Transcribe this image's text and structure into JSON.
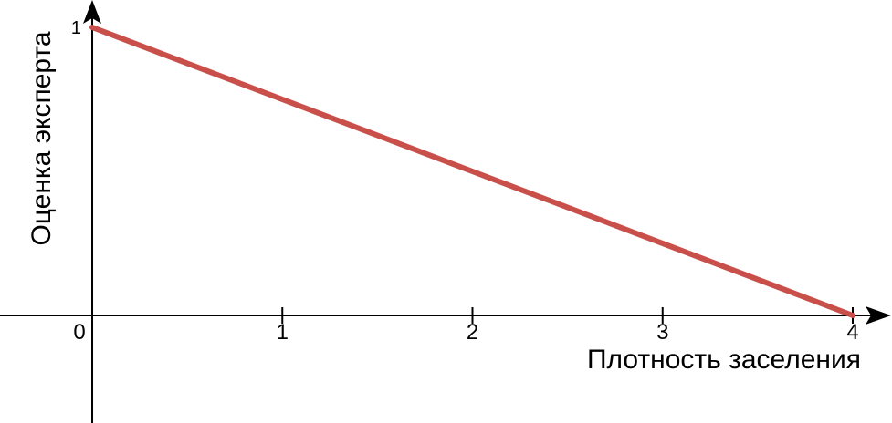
{
  "chart_data": {
    "type": "line",
    "xlabel": "Плотность заселения",
    "ylabel": "Оценка эксперта",
    "x_ticks": [
      "0",
      "1",
      "2",
      "3",
      "4"
    ],
    "y_ticks": [
      "1"
    ],
    "xlim": [
      0,
      4
    ],
    "ylim": [
      0,
      1
    ],
    "grid": false,
    "series": [
      {
        "x": [
          0,
          4
        ],
        "y": [
          1,
          0
        ]
      }
    ],
    "colors": {
      "line": "#c9504a",
      "axis": "#000000"
    }
  }
}
